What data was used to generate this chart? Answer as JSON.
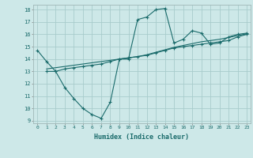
{
  "xlabel": "Humidex (Indice chaleur)",
  "ylabel": "",
  "bg_color": "#cde8e8",
  "grid_color": "#a8cccc",
  "line_color": "#1a6b6b",
  "xlim": [
    -0.5,
    23.4
  ],
  "ylim": [
    8.8,
    18.4
  ],
  "xticks": [
    0,
    1,
    2,
    3,
    4,
    5,
    6,
    7,
    8,
    9,
    10,
    11,
    12,
    13,
    14,
    15,
    16,
    17,
    18,
    19,
    20,
    21,
    22,
    23
  ],
  "yticks": [
    9,
    10,
    11,
    12,
    13,
    14,
    15,
    16,
    17,
    18
  ],
  "line1_x": [
    0,
    1,
    2,
    3,
    4,
    5,
    6,
    7,
    8,
    9,
    10,
    11,
    12,
    13,
    14,
    15,
    16,
    17,
    18,
    19,
    20,
    21,
    22,
    23
  ],
  "line1_y": [
    14.7,
    13.8,
    13.0,
    11.7,
    10.8,
    10.0,
    9.5,
    9.2,
    10.5,
    14.0,
    14.0,
    17.2,
    17.4,
    18.0,
    18.1,
    15.3,
    15.6,
    16.3,
    16.1,
    15.2,
    15.3,
    15.8,
    16.0,
    16.1
  ],
  "line2_x": [
    1,
    2,
    3,
    4,
    5,
    6,
    7,
    8,
    9,
    10,
    11,
    12,
    13,
    14,
    15,
    16,
    17,
    18,
    19,
    20,
    21,
    22,
    23
  ],
  "line2_y": [
    13.0,
    13.0,
    13.2,
    13.3,
    13.4,
    13.5,
    13.6,
    13.8,
    14.0,
    14.1,
    14.2,
    14.3,
    14.5,
    14.7,
    14.9,
    15.0,
    15.1,
    15.2,
    15.3,
    15.4,
    15.5,
    15.8,
    16.0
  ],
  "line3_x": [
    1,
    2,
    3,
    4,
    5,
    6,
    7,
    8,
    9,
    10,
    11,
    12,
    13,
    14,
    15,
    16,
    17,
    18,
    19,
    20,
    21,
    22,
    23
  ],
  "line3_y": [
    13.2,
    13.3,
    13.4,
    13.5,
    13.6,
    13.7,
    13.8,
    13.9,
    14.0,
    14.1,
    14.2,
    14.35,
    14.55,
    14.75,
    14.95,
    15.1,
    15.25,
    15.4,
    15.5,
    15.6,
    15.75,
    15.9,
    16.05
  ]
}
